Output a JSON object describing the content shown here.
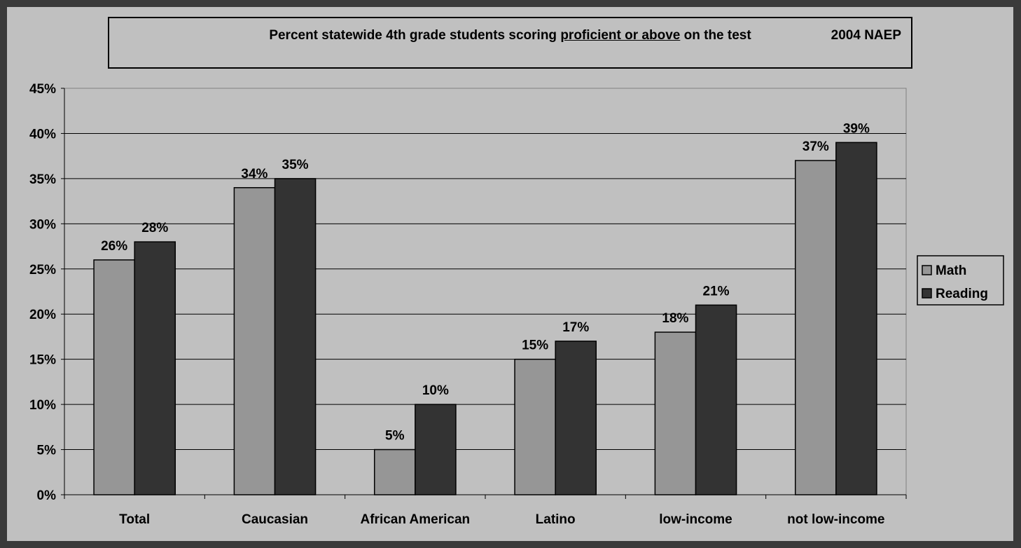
{
  "chart_data": {
    "type": "bar",
    "title": {
      "prefix": "Percent statewide 4th grade students scoring ",
      "underlined": "proficient or above",
      "suffix": " on the test",
      "right": "2004 NAEP"
    },
    "categories": [
      "Total",
      "Caucasian",
      "African American",
      "Latino",
      "low-income",
      "not low-income"
    ],
    "series": [
      {
        "name": "Math",
        "values": [
          26,
          34,
          5,
          15,
          18,
          37
        ],
        "color": "#969696"
      },
      {
        "name": "Reading",
        "values": [
          28,
          35,
          10,
          17,
          21,
          39
        ],
        "color": "#333333"
      }
    ],
    "ylim": [
      0,
      45
    ],
    "yticks": [
      "0%",
      "5%",
      "10%",
      "15%",
      "20%",
      "25%",
      "30%",
      "35%",
      "40%",
      "45%"
    ],
    "value_suffix": "%",
    "legend_position": "right",
    "grid": true,
    "frame_color": "#3a3a3a",
    "plot_background": "#c0c0c0"
  }
}
